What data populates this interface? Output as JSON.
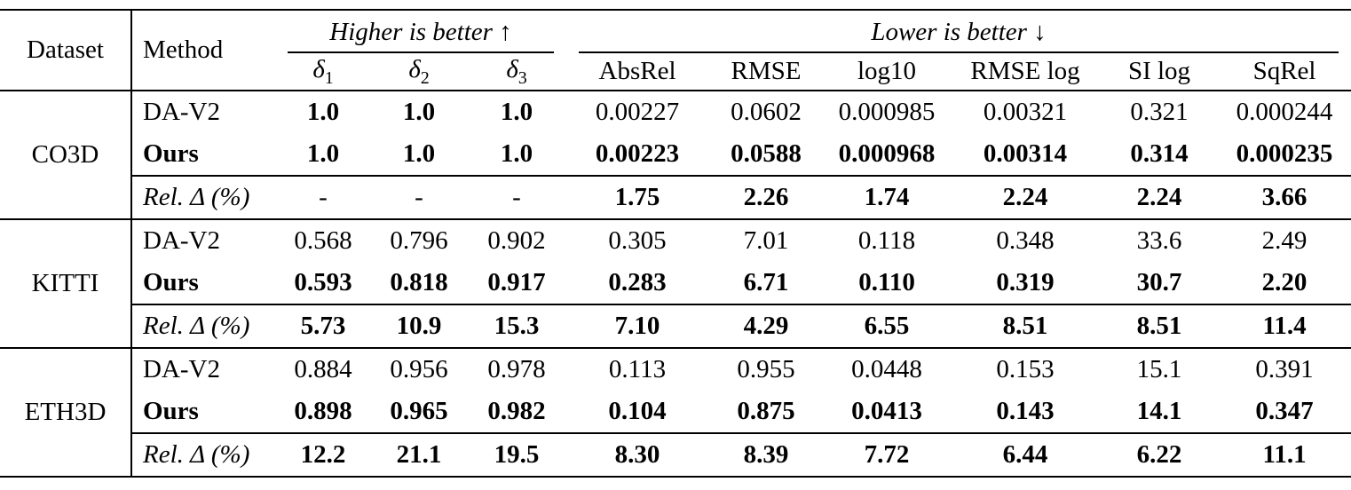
{
  "header": {
    "dataset": "Dataset",
    "method": "Method",
    "higher_group": "Higher is better ↑",
    "lower_group": "Lower is better ↓",
    "delta_cols": [
      {
        "sym": "δ",
        "sub": "1"
      },
      {
        "sym": "δ",
        "sub": "2"
      },
      {
        "sym": "δ",
        "sub": "3"
      }
    ],
    "metric_cols": [
      "AbsRel",
      "RMSE",
      "log10",
      "RMSE log",
      "SI log",
      "SqRel"
    ]
  },
  "groups": [
    {
      "dataset": "CO3D",
      "rows": [
        {
          "method": "DA-V2",
          "values": [
            "1.0",
            "1.0",
            "1.0",
            "0.00227",
            "0.0602",
            "0.000985",
            "0.00321",
            "0.321",
            "0.000244"
          ]
        },
        {
          "method": "Ours",
          "values": [
            "1.0",
            "1.0",
            "1.0",
            "0.00223",
            "0.0588",
            "0.000968",
            "0.00314",
            "0.314",
            "0.000235"
          ]
        },
        {
          "method": "Rel. Δ (%)",
          "values": [
            "-",
            "-",
            "-",
            "1.75",
            "2.26",
            "1.74",
            "2.24",
            "2.24",
            "3.66"
          ]
        }
      ]
    },
    {
      "dataset": "KITTI",
      "rows": [
        {
          "method": "DA-V2",
          "values": [
            "0.568",
            "0.796",
            "0.902",
            "0.305",
            "7.01",
            "0.118",
            "0.348",
            "33.6",
            "2.49"
          ]
        },
        {
          "method": "Ours",
          "values": [
            "0.593",
            "0.818",
            "0.917",
            "0.283",
            "6.71",
            "0.110",
            "0.319",
            "30.7",
            "2.20"
          ]
        },
        {
          "method": "Rel. Δ (%)",
          "values": [
            "5.73",
            "10.9",
            "15.3",
            "7.10",
            "4.29",
            "6.55",
            "8.51",
            "8.51",
            "11.4"
          ]
        }
      ]
    },
    {
      "dataset": "ETH3D",
      "rows": [
        {
          "method": "DA-V2",
          "values": [
            "0.884",
            "0.956",
            "0.978",
            "0.113",
            "0.955",
            "0.0448",
            "0.153",
            "15.1",
            "0.391"
          ]
        },
        {
          "method": "Ours",
          "values": [
            "0.898",
            "0.965",
            "0.982",
            "0.104",
            "0.875",
            "0.0413",
            "0.143",
            "14.1",
            "0.347"
          ]
        },
        {
          "method": "Rel. Δ (%)",
          "values": [
            "12.2",
            "21.1",
            "19.5",
            "8.30",
            "8.39",
            "7.72",
            "6.44",
            "6.22",
            "11.1"
          ]
        }
      ]
    }
  ]
}
